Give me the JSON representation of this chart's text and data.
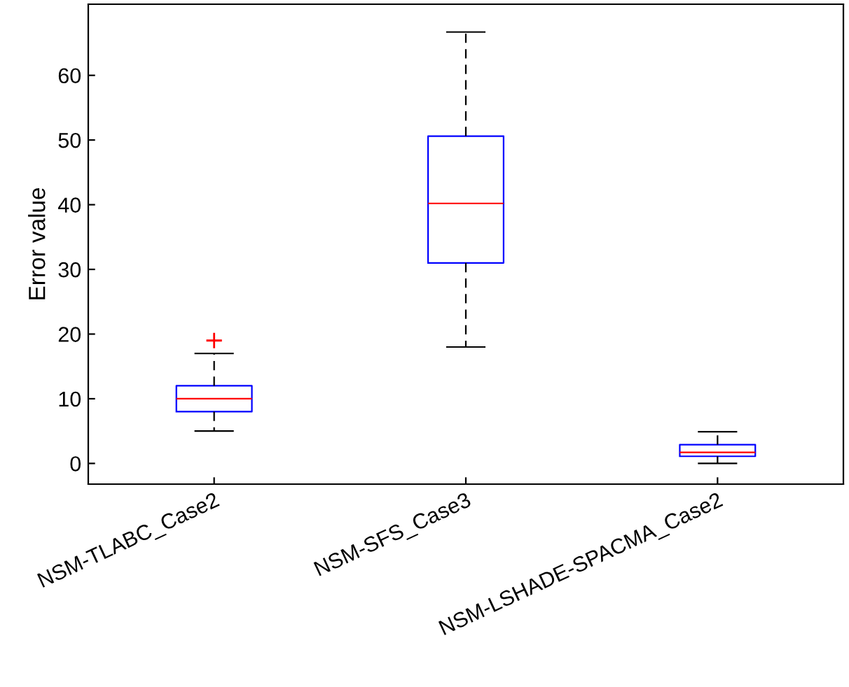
{
  "chart_data": {
    "type": "box",
    "ylabel": "Error value",
    "categories": [
      "NSM-TLABC_Case2",
      "NSM-SFS_Case3",
      "NSM-LSHADE-SPACMA_Case2"
    ],
    "boxes": [
      {
        "low": 5,
        "q1": 8,
        "median": 10,
        "q3": 12,
        "high": 17,
        "outliers": [
          19
        ]
      },
      {
        "low": 18,
        "q1": 31,
        "median": 40.2,
        "q3": 50.6,
        "high": 66.7
      },
      {
        "low": 0,
        "q1": 1.1,
        "median": 1.7,
        "q3": 2.9,
        "high": 4.9
      }
    ],
    "color": "#0000ff",
    "ylim": [
      -3.2,
      71
    ],
    "yticks": [
      0,
      10,
      20,
      30,
      40,
      50,
      60
    ],
    "grid": false,
    "legend": false
  }
}
